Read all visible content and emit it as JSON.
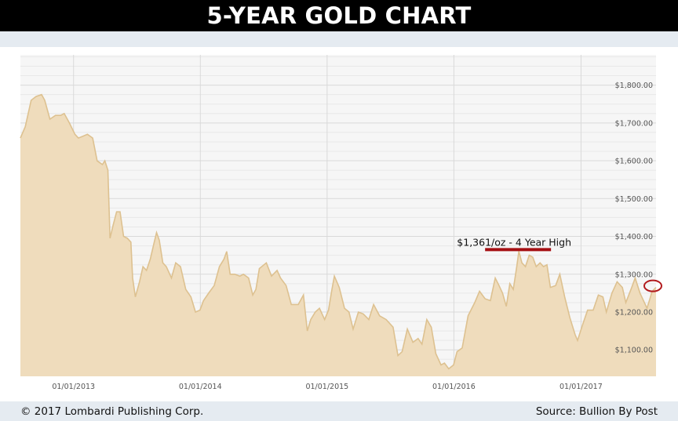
{
  "header": {
    "title": "5-YEAR GOLD CHART"
  },
  "footer": {
    "copyright": "© 2017 Lombardi Publishing Corp.",
    "source": "Source: Bullion By Post"
  },
  "colors": {
    "area_fill": "#efdcbc",
    "area_line": "#ddc190",
    "annotation_underline": "#a50f13",
    "highlight_circle": "#b21b1e"
  },
  "chart_data": {
    "type": "area",
    "title": "",
    "xlabel": "",
    "ylabel": "",
    "x_tick_labels": [
      "01/01/2013",
      "01/01/2014",
      "01/01/2015",
      "01/01/2016",
      "01/01/2017"
    ],
    "y_tick_labels": [
      "$1,100.00",
      "$1,200.00",
      "$1,300.00",
      "$1,400.00",
      "$1,500.00",
      "$1,600.00",
      "$1,700.00",
      "$1,800.00"
    ],
    "y_ticks": [
      1100,
      1200,
      1300,
      1400,
      1500,
      1600,
      1700,
      1800
    ],
    "ylim": [
      1030,
      1880
    ],
    "xlim": [
      "2012-08-01",
      "2017-08-05"
    ],
    "grid": true,
    "series": [
      {
        "points": [
          [
            "2012-08-01",
            1660
          ],
          [
            "2012-08-15",
            1690
          ],
          [
            "2012-09-01",
            1760
          ],
          [
            "2012-09-15",
            1770
          ],
          [
            "2012-10-01",
            1775
          ],
          [
            "2012-10-10",
            1760
          ],
          [
            "2012-10-25",
            1710
          ],
          [
            "2012-11-10",
            1720
          ],
          [
            "2012-11-25",
            1720
          ],
          [
            "2012-12-05",
            1725
          ],
          [
            "2012-12-20",
            1700
          ],
          [
            "2013-01-05",
            1670
          ],
          [
            "2013-01-15",
            1660
          ],
          [
            "2013-01-28",
            1665
          ],
          [
            "2013-02-10",
            1670
          ],
          [
            "2013-02-25",
            1660
          ],
          [
            "2013-03-10",
            1600
          ],
          [
            "2013-03-25",
            1590
          ],
          [
            "2013-04-01",
            1600
          ],
          [
            "2013-04-10",
            1575
          ],
          [
            "2013-04-16",
            1395
          ],
          [
            "2013-04-25",
            1430
          ],
          [
            "2013-05-05",
            1465
          ],
          [
            "2013-05-15",
            1465
          ],
          [
            "2013-05-25",
            1400
          ],
          [
            "2013-06-05",
            1395
          ],
          [
            "2013-06-15",
            1385
          ],
          [
            "2013-06-20",
            1290
          ],
          [
            "2013-06-28",
            1240
          ],
          [
            "2013-07-10",
            1280
          ],
          [
            "2013-07-20",
            1320
          ],
          [
            "2013-07-30",
            1310
          ],
          [
            "2013-08-10",
            1340
          ],
          [
            "2013-08-20",
            1380
          ],
          [
            "2013-08-28",
            1410
          ],
          [
            "2013-09-05",
            1390
          ],
          [
            "2013-09-15",
            1330
          ],
          [
            "2013-09-25",
            1320
          ],
          [
            "2013-10-10",
            1290
          ],
          [
            "2013-10-22",
            1330
          ],
          [
            "2013-11-05",
            1320
          ],
          [
            "2013-11-20",
            1260
          ],
          [
            "2013-12-05",
            1240
          ],
          [
            "2013-12-18",
            1200
          ],
          [
            "2013-12-31",
            1205
          ],
          [
            "2014-01-10",
            1230
          ],
          [
            "2014-01-25",
            1250
          ],
          [
            "2014-02-10",
            1270
          ],
          [
            "2014-02-25",
            1320
          ],
          [
            "2014-03-10",
            1340
          ],
          [
            "2014-03-18",
            1360
          ],
          [
            "2014-03-28",
            1300
          ],
          [
            "2014-04-10",
            1300
          ],
          [
            "2014-04-25",
            1295
          ],
          [
            "2014-05-05",
            1300
          ],
          [
            "2014-05-20",
            1290
          ],
          [
            "2014-06-01",
            1245
          ],
          [
            "2014-06-10",
            1260
          ],
          [
            "2014-06-20",
            1315
          ],
          [
            "2014-07-10",
            1330
          ],
          [
            "2014-07-25",
            1295
          ],
          [
            "2014-08-10",
            1310
          ],
          [
            "2014-08-20",
            1290
          ],
          [
            "2014-09-05",
            1270
          ],
          [
            "2014-09-20",
            1220
          ],
          [
            "2014-10-10",
            1220
          ],
          [
            "2014-10-25",
            1245
          ],
          [
            "2014-11-05",
            1150
          ],
          [
            "2014-11-15",
            1180
          ],
          [
            "2014-11-28",
            1200
          ],
          [
            "2014-12-10",
            1210
          ],
          [
            "2014-12-25",
            1180
          ],
          [
            "2015-01-05",
            1205
          ],
          [
            "2015-01-15",
            1260
          ],
          [
            "2015-01-22",
            1295
          ],
          [
            "2015-02-05",
            1265
          ],
          [
            "2015-02-20",
            1210
          ],
          [
            "2015-03-05",
            1200
          ],
          [
            "2015-03-17",
            1155
          ],
          [
            "2015-04-01",
            1200
          ],
          [
            "2015-04-15",
            1195
          ],
          [
            "2015-05-01",
            1180
          ],
          [
            "2015-05-15",
            1220
          ],
          [
            "2015-06-01",
            1190
          ],
          [
            "2015-06-20",
            1180
          ],
          [
            "2015-07-10",
            1160
          ],
          [
            "2015-07-24",
            1085
          ],
          [
            "2015-08-05",
            1095
          ],
          [
            "2015-08-20",
            1155
          ],
          [
            "2015-09-05",
            1120
          ],
          [
            "2015-09-20",
            1130
          ],
          [
            "2015-10-01",
            1115
          ],
          [
            "2015-10-15",
            1180
          ],
          [
            "2015-10-28",
            1160
          ],
          [
            "2015-11-10",
            1090
          ],
          [
            "2015-11-25",
            1060
          ],
          [
            "2015-12-05",
            1065
          ],
          [
            "2015-12-17",
            1050
          ],
          [
            "2015-12-31",
            1060
          ],
          [
            "2016-01-10",
            1095
          ],
          [
            "2016-01-25",
            1105
          ],
          [
            "2016-02-11",
            1190
          ],
          [
            "2016-03-01",
            1225
          ],
          [
            "2016-03-15",
            1255
          ],
          [
            "2016-03-31",
            1235
          ],
          [
            "2016-04-15",
            1230
          ],
          [
            "2016-04-29",
            1290
          ],
          [
            "2016-05-10",
            1270
          ],
          [
            "2016-05-20",
            1250
          ],
          [
            "2016-05-31",
            1215
          ],
          [
            "2016-06-10",
            1275
          ],
          [
            "2016-06-20",
            1260
          ],
          [
            "2016-06-30",
            1320
          ],
          [
            "2016-07-06",
            1361
          ],
          [
            "2016-07-15",
            1330
          ],
          [
            "2016-07-25",
            1320
          ],
          [
            "2016-08-05",
            1350
          ],
          [
            "2016-08-15",
            1345
          ],
          [
            "2016-08-25",
            1320
          ],
          [
            "2016-09-05",
            1330
          ],
          [
            "2016-09-15",
            1320
          ],
          [
            "2016-09-25",
            1325
          ],
          [
            "2016-10-05",
            1265
          ],
          [
            "2016-10-20",
            1270
          ],
          [
            "2016-11-01",
            1300
          ],
          [
            "2016-11-15",
            1240
          ],
          [
            "2016-11-30",
            1185
          ],
          [
            "2016-12-15",
            1140
          ],
          [
            "2016-12-22",
            1125
          ],
          [
            "2017-01-05",
            1165
          ],
          [
            "2017-01-20",
            1205
          ],
          [
            "2017-02-05",
            1205
          ],
          [
            "2017-02-20",
            1245
          ],
          [
            "2017-03-05",
            1240
          ],
          [
            "2017-03-15",
            1200
          ],
          [
            "2017-03-31",
            1250
          ],
          [
            "2017-04-15",
            1280
          ],
          [
            "2017-04-30",
            1265
          ],
          [
            "2017-05-10",
            1225
          ],
          [
            "2017-05-25",
            1260
          ],
          [
            "2017-06-06",
            1290
          ],
          [
            "2017-06-20",
            1250
          ],
          [
            "2017-07-10",
            1210
          ],
          [
            "2017-07-25",
            1255
          ],
          [
            "2017-08-05",
            1265
          ]
        ]
      }
    ],
    "annotations": [
      {
        "text": "$1,361/oz - 4 Year High",
        "date": "2016-07-06",
        "value": 1361
      }
    ],
    "highlight": {
      "date": "2017-08-05",
      "value": 1265
    }
  }
}
